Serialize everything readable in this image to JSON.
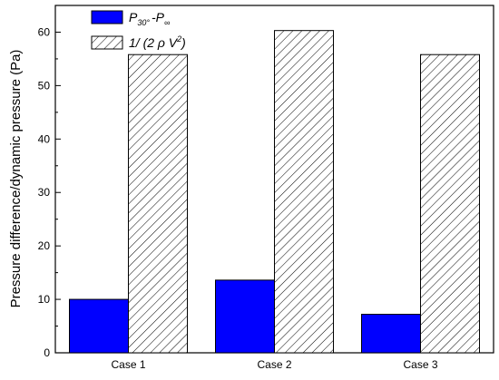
{
  "chart_data": {
    "type": "bar",
    "categories": [
      "Case 1",
      "Case 2",
      "Case 3"
    ],
    "series": [
      {
        "name": "P30° - P∞",
        "values": [
          10.0,
          13.6,
          7.2
        ],
        "fill": "solid",
        "color": "#0000ff"
      },
      {
        "name": "1/(2ρV²)",
        "values": [
          55.8,
          60.3,
          55.8
        ],
        "fill": "hatched",
        "color": "#000000"
      }
    ],
    "ylabel": "Pressure difference/dynamic pressure (Pa)",
    "xlabel": "",
    "ylim": [
      0,
      65
    ],
    "yticks": [
      0,
      10,
      20,
      30,
      40,
      50,
      60
    ],
    "grid": false,
    "legend_position": "top-left",
    "legend": {
      "entry1": {
        "main": "P",
        "sub1": "30°",
        "mid": "-P",
        "sub2": "∞"
      },
      "entry2": {
        "prefix": "1/ (2 ρ V",
        "sup": "2",
        "suffix": ")"
      }
    }
  }
}
